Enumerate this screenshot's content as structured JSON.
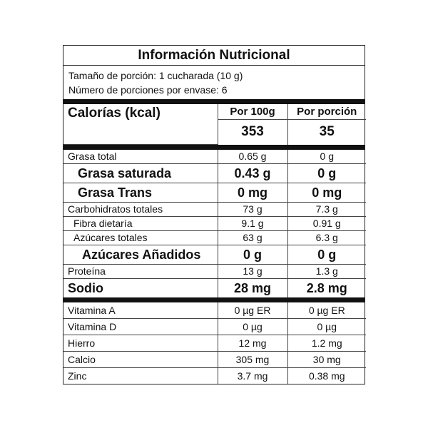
{
  "title": "Información Nutricional",
  "serving_size": "Tamaño de porción: 1 cucharada (10 g)",
  "servings_per_container": "Número de porciones por envase: 6",
  "calories": {
    "label": "Calorías (kcal)",
    "col1_header": "Por 100g",
    "col2_header": "Por porción",
    "per_100g": "353",
    "per_serving": "35"
  },
  "nutrients": [
    {
      "name": "Grasa total",
      "per_100g": "0.65 g",
      "per_serving": "0 g"
    },
    {
      "name": "Grasa saturada",
      "per_100g": "0.43 g",
      "per_serving": "0 g"
    },
    {
      "name": "Grasa Trans",
      "per_100g": "0 mg",
      "per_serving": "0 mg"
    },
    {
      "name": "Carbohidratos totales",
      "per_100g": "73 g",
      "per_serving": "7.3 g"
    },
    {
      "name": "Fibra dietaría",
      "per_100g": "9.1 g",
      "per_serving": "0.91 g"
    },
    {
      "name": "Azúcares totales",
      "per_100g": "63 g",
      "per_serving": "6.3 g"
    },
    {
      "name": "Azúcares Añadidos",
      "per_100g": "0 g",
      "per_serving": "0 g"
    },
    {
      "name": "Proteína",
      "per_100g": "13 g",
      "per_serving": "1.3 g"
    },
    {
      "name": "Sodio",
      "per_100g": "28 mg",
      "per_serving": "2.8 mg"
    }
  ],
  "micronutrients": [
    {
      "name": "Vitamina A",
      "per_100g": "0 µg ER",
      "per_serving": "0 µg ER"
    },
    {
      "name": "Vitamina D",
      "per_100g": "0 µg",
      "per_serving": "0 µg"
    },
    {
      "name": "Hierro",
      "per_100g": "12 mg",
      "per_serving": "1.2 mg"
    },
    {
      "name": "Calcio",
      "per_100g": "305 mg",
      "per_serving": "30 mg"
    },
    {
      "name": "Zinc",
      "per_100g": "3.7 mg",
      "per_serving": "0.38 mg"
    }
  ]
}
